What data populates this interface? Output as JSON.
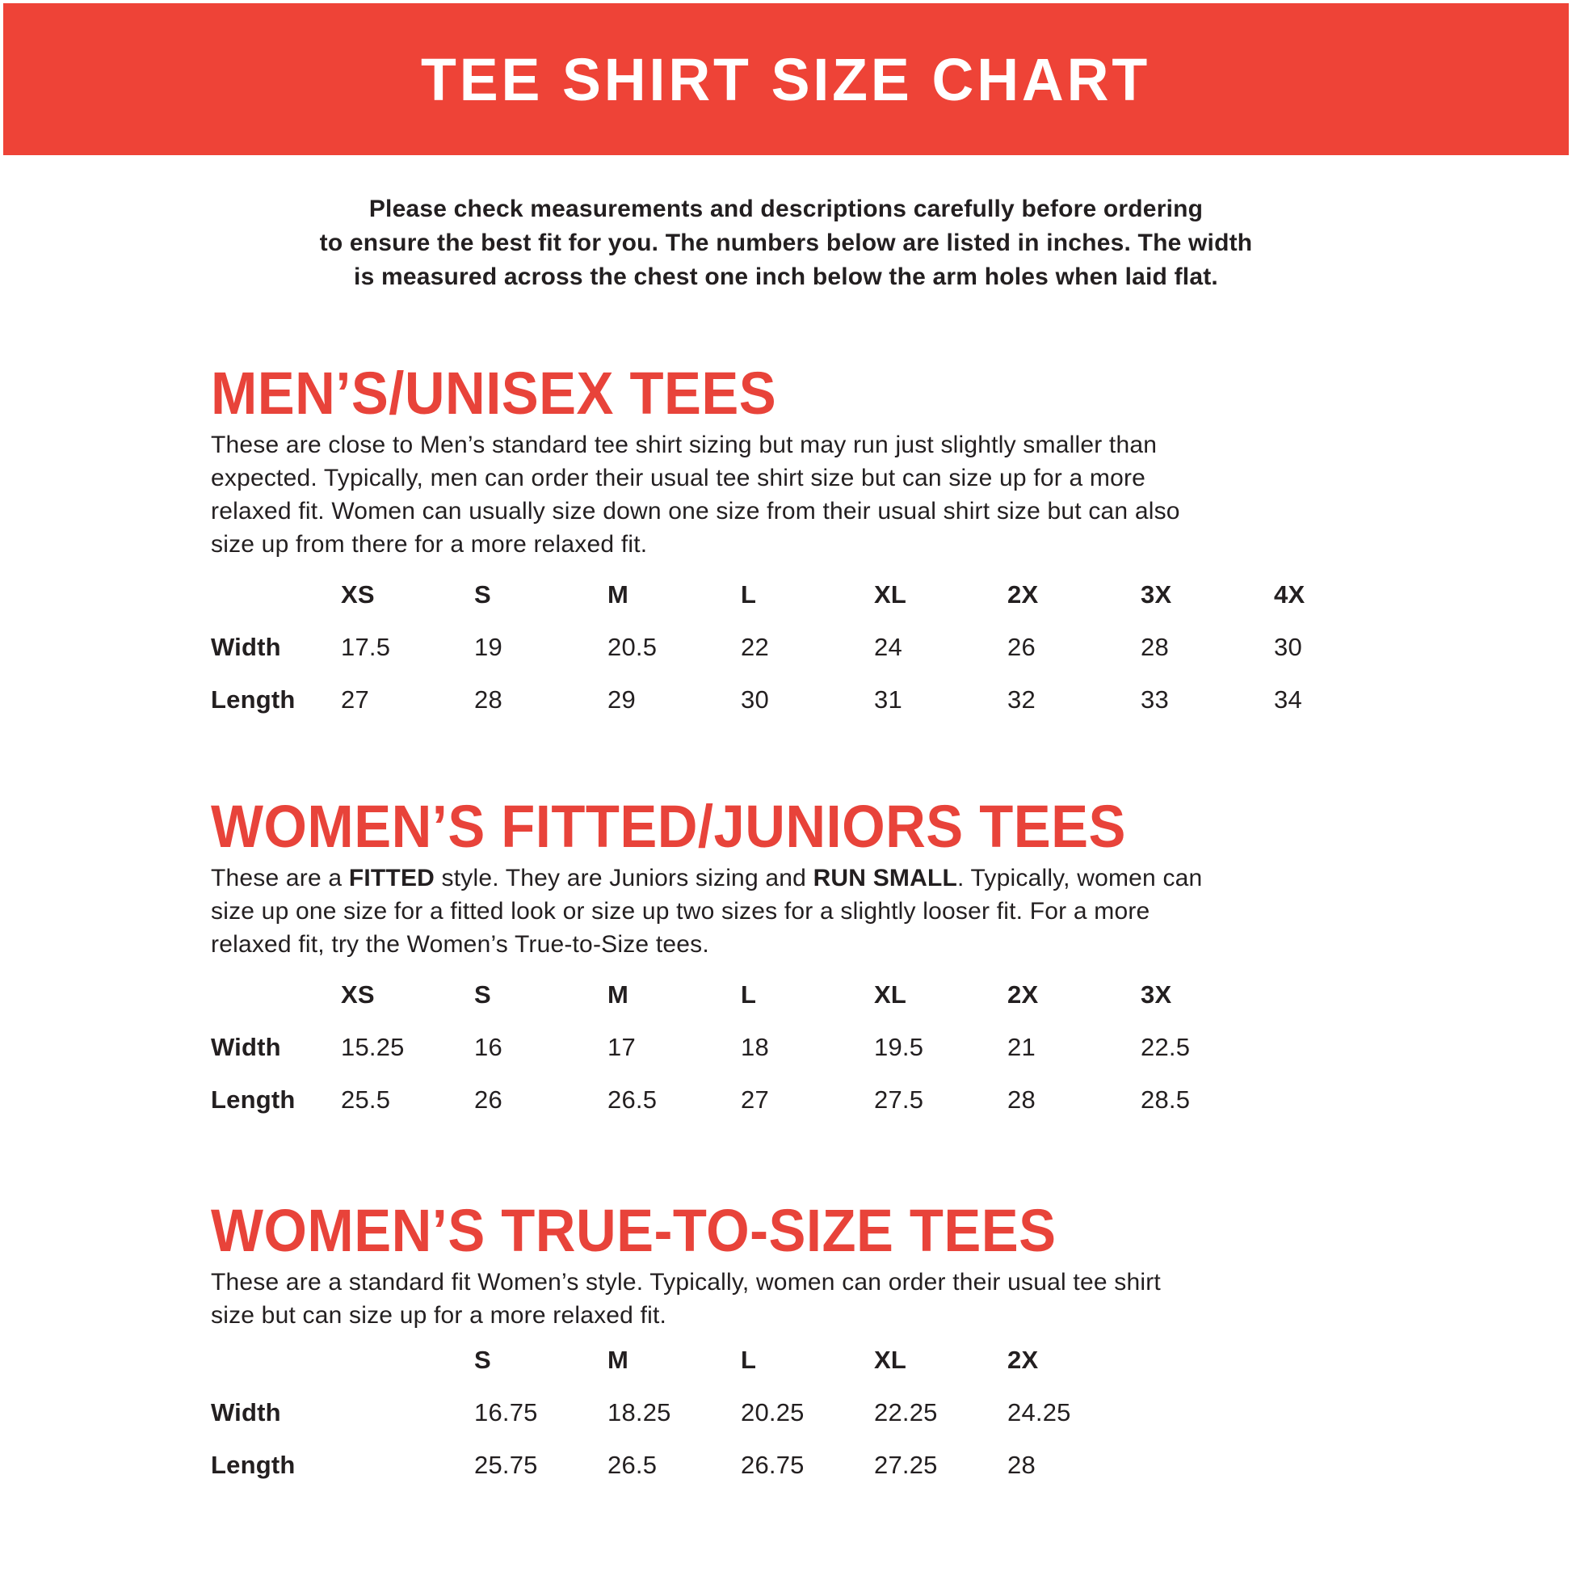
{
  "colors": {
    "banner_red": "#ee4337",
    "heading_red": "#e8433a",
    "text_black": "#231f20",
    "background": "#ffffff"
  },
  "banner": {
    "title": "TEE SHIRT SIZE CHART"
  },
  "intro": {
    "lines": [
      "Please check measurements and descriptions carefully before ordering",
      "to ensure the best fit for you. The numbers below are listed in inches. The width",
      "is measured across the chest one inch below the arm holes when laid flat."
    ]
  },
  "sections": [
    {
      "heading": "MEN’S/UNISEX TEES",
      "description_lines": [
        [
          {
            "text": "These are close to Men’s standard tee shirt sizing but may run just slightly smaller than",
            "bold": false
          }
        ],
        [
          {
            "text": "expected. Typically, men can order their usual tee shirt size but can size up for a more",
            "bold": false
          }
        ],
        [
          {
            "text": "relaxed fit. Women can usually size down one size from their usual shirt size but can also",
            "bold": false
          }
        ],
        [
          {
            "text": "size up from there for a more relaxed fit.",
            "bold": false
          }
        ]
      ],
      "table": {
        "col_offset": 0,
        "sizes": [
          "XS",
          "S",
          "M",
          "L",
          "XL",
          "2X",
          "3X",
          "4X"
        ],
        "rows": [
          {
            "label": "Width",
            "values": [
              "17.5",
              "19",
              "20.5",
              "22",
              "24",
              "26",
              "28",
              "30"
            ]
          },
          {
            "label": "Length",
            "values": [
              "27",
              "28",
              "29",
              "30",
              "31",
              "32",
              "33",
              "34"
            ]
          }
        ]
      }
    },
    {
      "heading": "WOMEN’S FITTED/JUNIORS TEES",
      "description_lines": [
        [
          {
            "text": "These are a ",
            "bold": false
          },
          {
            "text": "FITTED",
            "bold": true
          },
          {
            "text": " style. They are Juniors sizing and ",
            "bold": false
          },
          {
            "text": "RUN SMALL",
            "bold": true
          },
          {
            "text": ". Typically, women can",
            "bold": false
          }
        ],
        [
          {
            "text": "size up one size for a fitted look or size up two sizes for a slightly looser fit. For a more",
            "bold": false
          }
        ],
        [
          {
            "text": "relaxed fit, try the Women’s True-to-Size tees.",
            "bold": false
          }
        ]
      ],
      "table": {
        "col_offset": 0,
        "sizes": [
          "XS",
          "S",
          "M",
          "L",
          "XL",
          "2X",
          "3X"
        ],
        "rows": [
          {
            "label": "Width",
            "values": [
              "15.25",
              "16",
              "17",
              "18",
              "19.5",
              "21",
              "22.5"
            ]
          },
          {
            "label": "Length",
            "values": [
              "25.5",
              "26",
              "26.5",
              "27",
              "27.5",
              "28",
              "28.5"
            ]
          }
        ]
      }
    },
    {
      "heading": "WOMEN’S TRUE-TO-SIZE TEES",
      "description_lines": [
        [
          {
            "text": "These are a standard fit Women’s style. Typically, women can order their usual tee shirt",
            "bold": false
          }
        ],
        [
          {
            "text": "size but can size up for a more relaxed fit.",
            "bold": false
          }
        ]
      ],
      "table": {
        "col_offset": 1,
        "sizes": [
          "S",
          "M",
          "L",
          "XL",
          "2X"
        ],
        "rows": [
          {
            "label": "Width",
            "values": [
              "16.75",
              "18.25",
              "20.25",
              "22.25",
              "24.25"
            ]
          },
          {
            "label": "Length",
            "values": [
              "25.75",
              "26.5",
              "26.75",
              "27.25",
              "28"
            ]
          }
        ]
      }
    }
  ]
}
